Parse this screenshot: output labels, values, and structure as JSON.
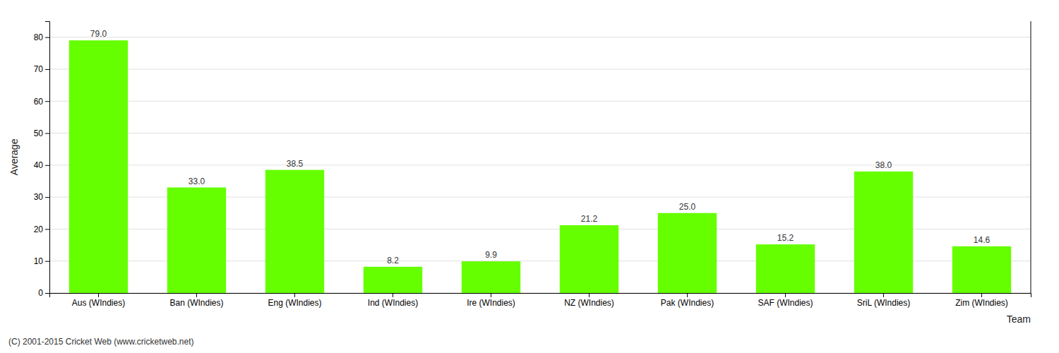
{
  "chart_data": {
    "type": "bar",
    "categories": [
      "Aus (WIndies)",
      "Ban (WIndies)",
      "Eng (WIndies)",
      "Ind (WIndies)",
      "Ire (WIndies)",
      "NZ (WIndies)",
      "Pak (WIndies)",
      "SAF (WIndies)",
      "SriL (WIndies)",
      "Zim (WIndies)"
    ],
    "values": [
      79.0,
      33.0,
      38.5,
      8.2,
      9.9,
      21.2,
      25.0,
      15.2,
      38.0,
      14.6
    ],
    "value_labels": [
      "79.0",
      "33.0",
      "38.5",
      "8.2",
      "9.9",
      "21.2",
      "25.0",
      "15.2",
      "38.0",
      "14.6"
    ],
    "data_labels": true,
    "color": "#66ff00",
    "ylabel": "Average",
    "xlabel": "Team",
    "ylim": [
      0,
      85
    ],
    "yticks": [
      0,
      10,
      20,
      30,
      40,
      50,
      60,
      70,
      80
    ],
    "grid": true,
    "footer": "(C) 2001-2015 Cricket Web (www.cricketweb.net)"
  }
}
